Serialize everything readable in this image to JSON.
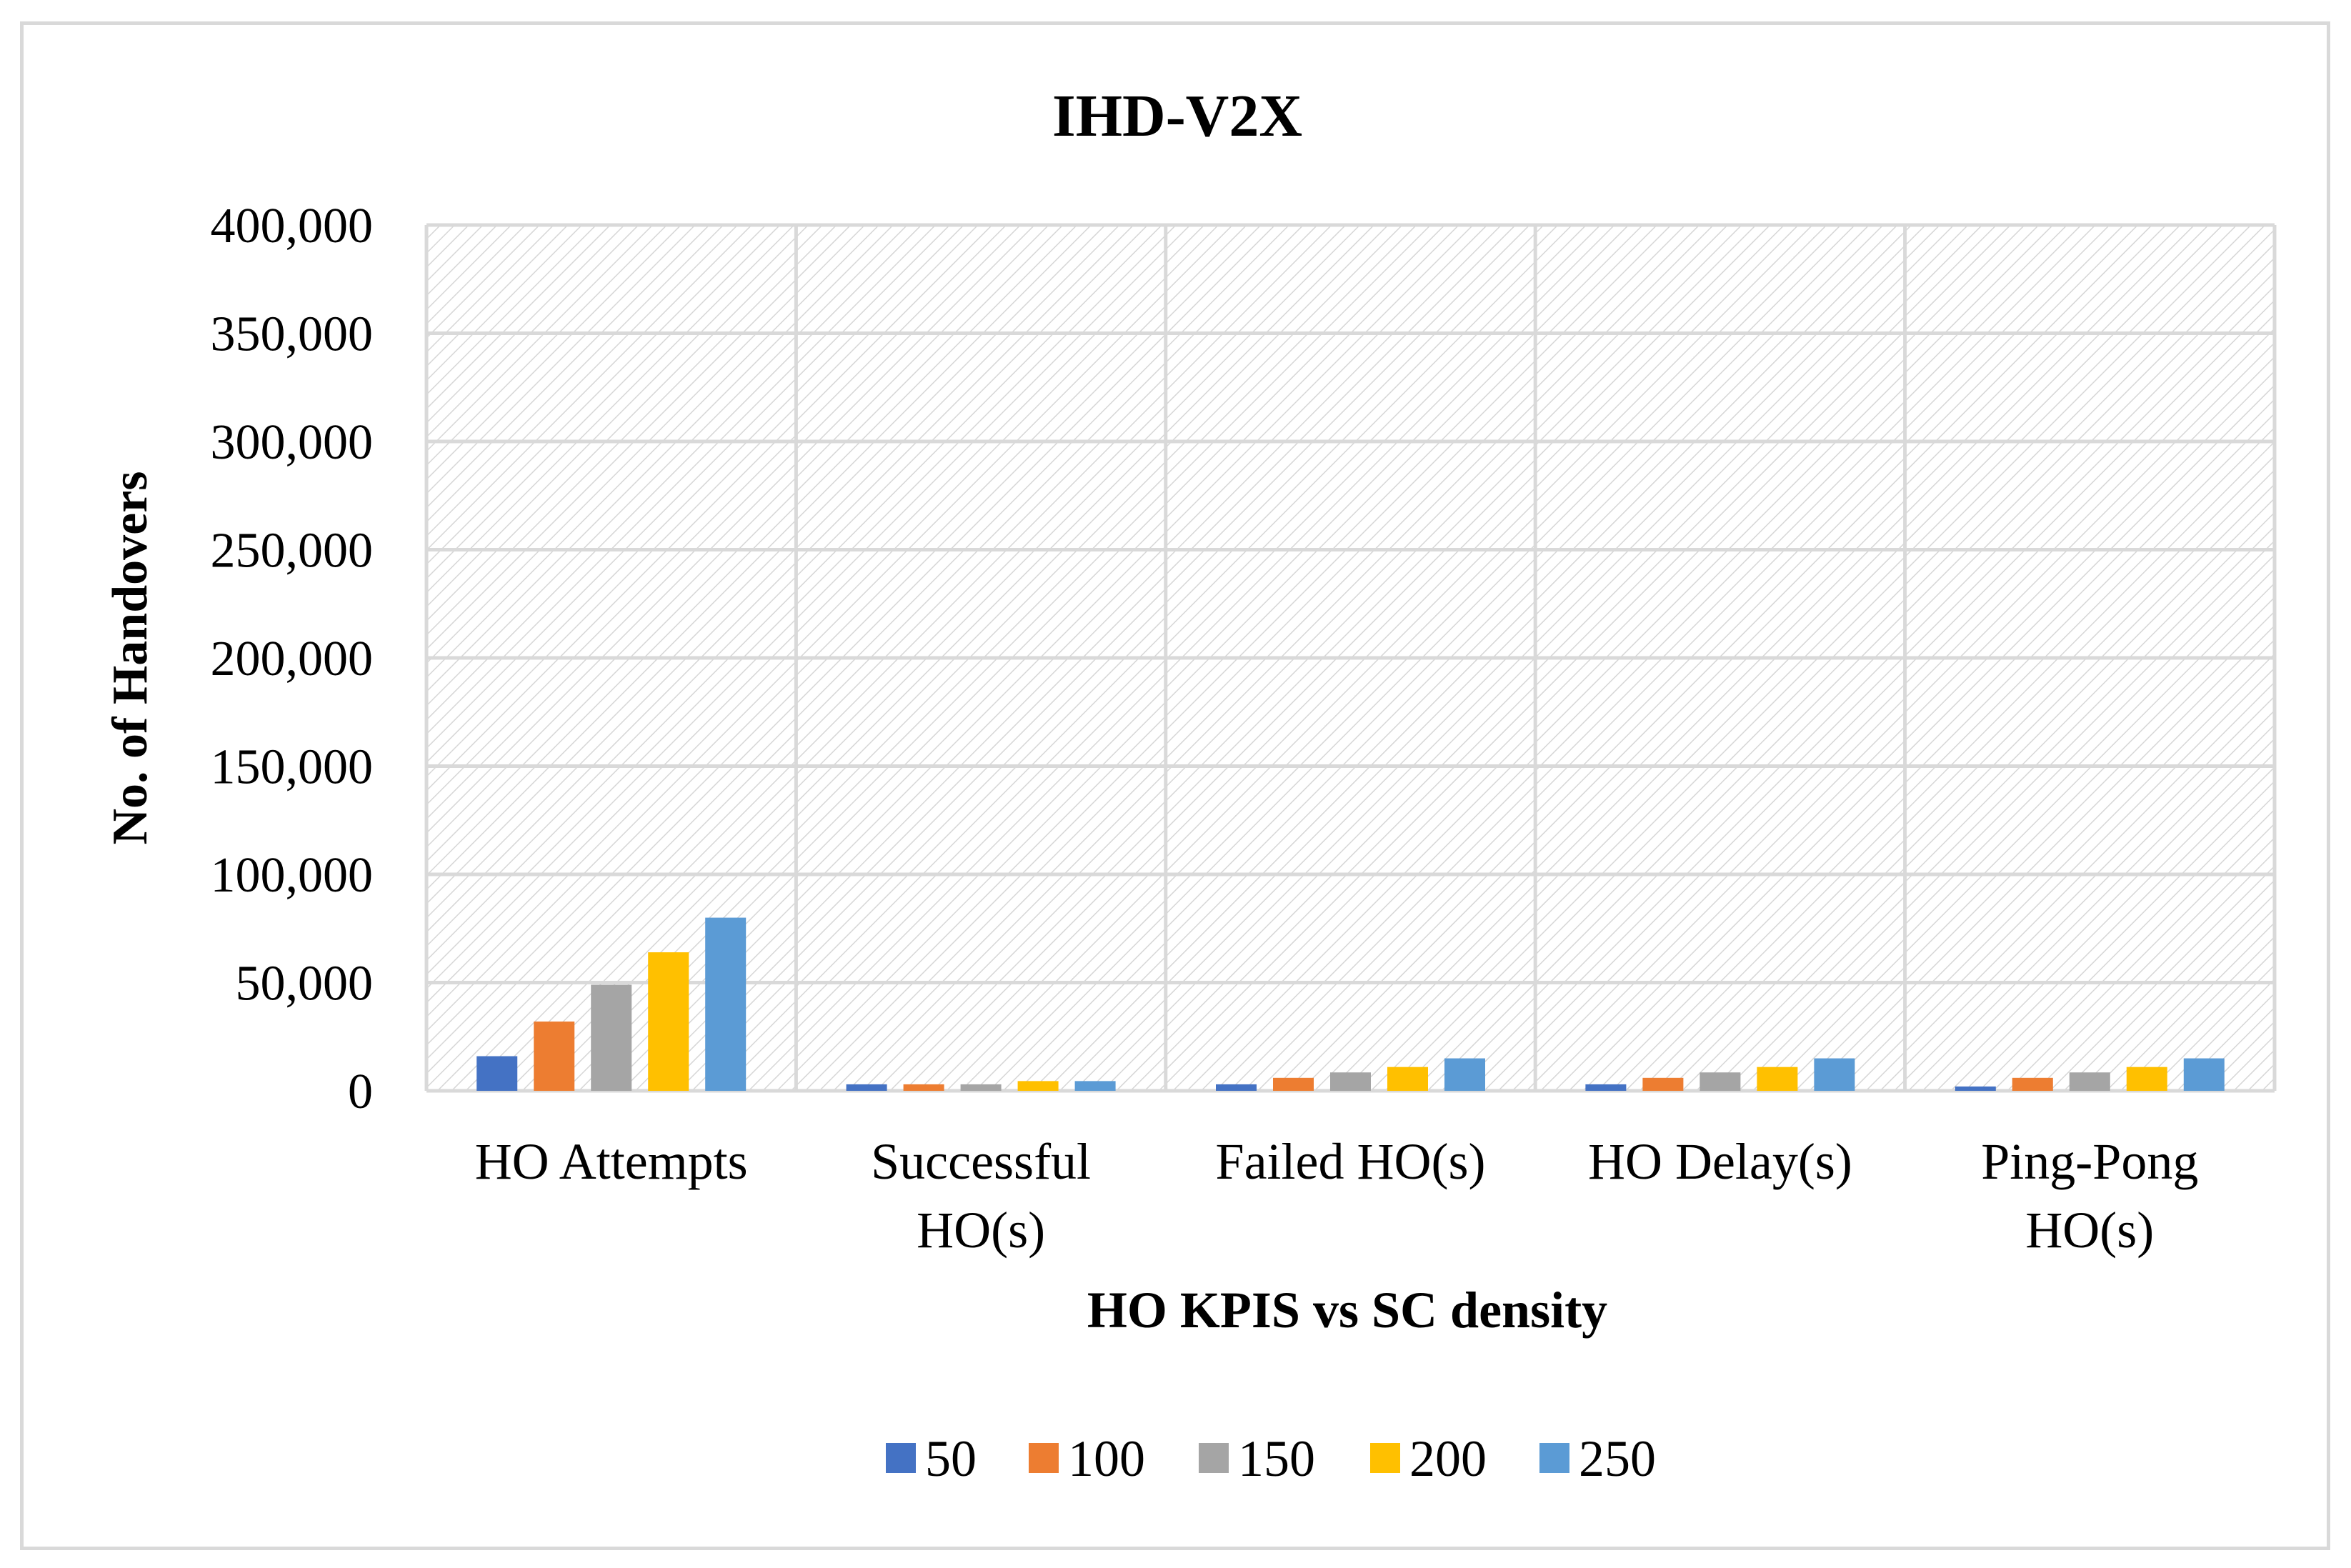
{
  "chart_data": {
    "type": "bar",
    "title": "IHD-V2X",
    "xlabel": "HO KPIS vs SC density",
    "ylabel": "No. of Handovers",
    "ylim": [
      0,
      400000
    ],
    "yticks": [
      0,
      50000,
      100000,
      150000,
      200000,
      250000,
      300000,
      350000,
      400000
    ],
    "ytick_labels": [
      "0",
      "50,000",
      "100,000",
      "150,000",
      "200,000",
      "250,000",
      "300,000",
      "350,000",
      "400,000"
    ],
    "categories": [
      [
        "HO Attempts"
      ],
      [
        "Successful",
        "HO(s)"
      ],
      [
        "Failed HO(s)"
      ],
      [
        "HO Delay(s)"
      ],
      [
        "Ping-Pong",
        "HO(s)"
      ]
    ],
    "grid": true,
    "legend_position": "bottom",
    "series": [
      {
        "name": "50",
        "color": "#4472C4",
        "values": [
          16000,
          3000,
          3000,
          3000,
          2000
        ]
      },
      {
        "name": "100",
        "color": "#ED7D31",
        "values": [
          32000,
          3000,
          6000,
          6000,
          6000
        ]
      },
      {
        "name": "150",
        "color": "#A5A5A5",
        "values": [
          49000,
          3000,
          8500,
          8500,
          8500
        ]
      },
      {
        "name": "200",
        "color": "#FFC000",
        "values": [
          64000,
          4500,
          11000,
          11000,
          11000
        ]
      },
      {
        "name": "250",
        "color": "#5B9BD5",
        "values": [
          80000,
          4500,
          15000,
          15000,
          15000
        ]
      }
    ]
  }
}
